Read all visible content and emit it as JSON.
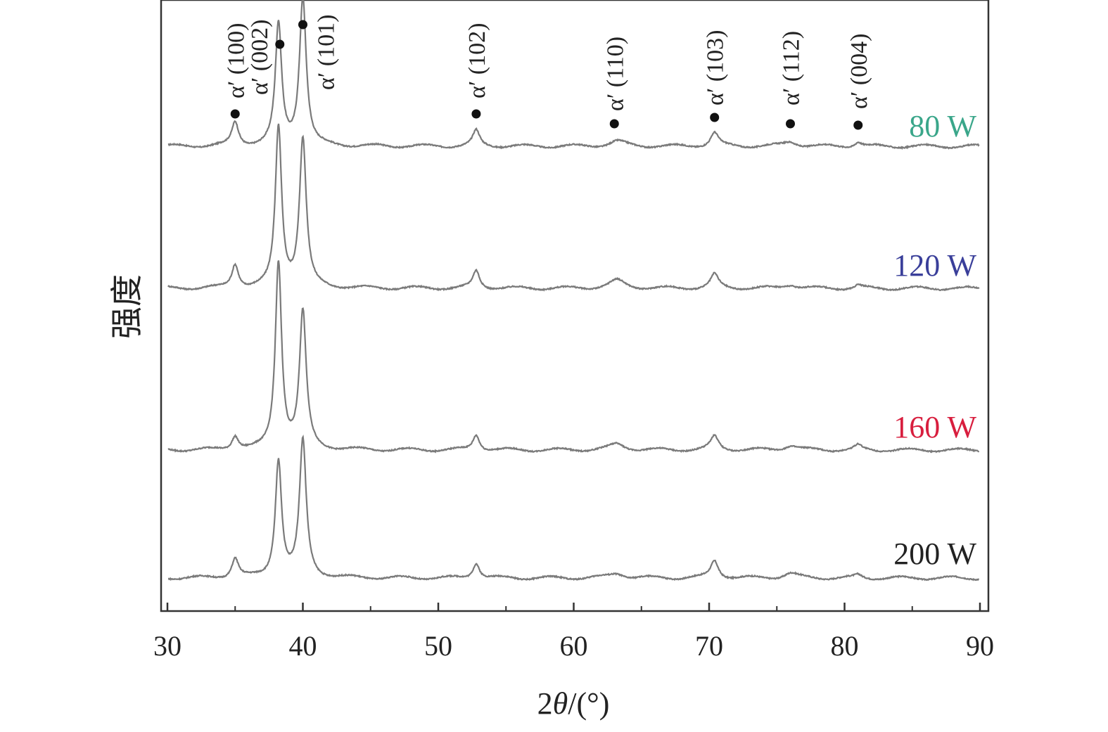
{
  "chart_data": {
    "type": "line",
    "title": "",
    "xlabel_prefix": "2",
    "xlabel_theta": "θ",
    "xlabel_suffix": "/(°)",
    "ylabel": "强度",
    "xlim": [
      30,
      90
    ],
    "xticks": [
      30,
      40,
      50,
      60,
      70,
      80,
      90
    ],
    "grid": false,
    "legend": "inline-right",
    "peak_markers": [
      {
        "x": 35.0,
        "label": "α′ (100)"
      },
      {
        "x": 38.3,
        "label": "α′ (002)"
      },
      {
        "x": 40.0,
        "label": "α′ (101)"
      },
      {
        "x": 52.8,
        "label": "α′ (102)"
      },
      {
        "x": 63.0,
        "label": "α′ (110)"
      },
      {
        "x": 70.4,
        "label": "α′ (103)"
      },
      {
        "x": 76.0,
        "label": "α′ (112)"
      },
      {
        "x": 81.0,
        "label": "α′ (004)"
      }
    ],
    "series": [
      {
        "name": "80 W",
        "label_color": "#3aa68a",
        "line_color": "#7a7a7a",
        "peaks": [
          {
            "x": 35.0,
            "h": 0.06,
            "w": 0.3
          },
          {
            "x": 38.2,
            "h": 0.31,
            "w": 0.28
          },
          {
            "x": 40.0,
            "h": 0.38,
            "w": 0.3
          },
          {
            "x": 52.8,
            "h": 0.04,
            "w": 0.3
          },
          {
            "x": 63.2,
            "h": 0.013,
            "w": 0.7
          },
          {
            "x": 70.4,
            "h": 0.035,
            "w": 0.35
          },
          {
            "x": 76.0,
            "h": 0.012,
            "w": 0.6
          },
          {
            "x": 81.0,
            "h": 0.012,
            "w": 0.3
          }
        ]
      },
      {
        "name": "120 W",
        "label_color": "#3a3f9a",
        "line_color": "#7a7a7a",
        "peaks": [
          {
            "x": 35.0,
            "h": 0.06,
            "w": 0.3
          },
          {
            "x": 38.2,
            "h": 0.41,
            "w": 0.28
          },
          {
            "x": 40.0,
            "h": 0.38,
            "w": 0.3
          },
          {
            "x": 52.8,
            "h": 0.045,
            "w": 0.3
          },
          {
            "x": 63.2,
            "h": 0.02,
            "w": 0.7
          },
          {
            "x": 70.4,
            "h": 0.035,
            "w": 0.35
          },
          {
            "x": 76.0,
            "h": 0.01,
            "w": 0.6
          },
          {
            "x": 81.0,
            "h": 0.008,
            "w": 0.3
          }
        ]
      },
      {
        "name": "160 W",
        "label_color": "#d81e3e",
        "line_color": "#7a7a7a",
        "peaks": [
          {
            "x": 35.0,
            "h": 0.035,
            "w": 0.3
          },
          {
            "x": 38.2,
            "h": 0.48,
            "w": 0.28
          },
          {
            "x": 40.0,
            "h": 0.35,
            "w": 0.3
          },
          {
            "x": 52.8,
            "h": 0.04,
            "w": 0.3
          },
          {
            "x": 63.2,
            "h": 0.015,
            "w": 0.7
          },
          {
            "x": 70.4,
            "h": 0.035,
            "w": 0.35
          },
          {
            "x": 76.0,
            "h": 0.012,
            "w": 0.6
          },
          {
            "x": 81.0,
            "h": 0.012,
            "w": 0.3
          }
        ]
      },
      {
        "name": "200 W",
        "label_color": "#222222",
        "line_color": "#7a7a7a",
        "peaks": [
          {
            "x": 35.0,
            "h": 0.05,
            "w": 0.3
          },
          {
            "x": 38.2,
            "h": 0.3,
            "w": 0.28
          },
          {
            "x": 40.0,
            "h": 0.35,
            "w": 0.3
          },
          {
            "x": 52.8,
            "h": 0.04,
            "w": 0.3
          },
          {
            "x": 63.2,
            "h": 0.012,
            "w": 0.7
          },
          {
            "x": 70.4,
            "h": 0.045,
            "w": 0.35
          },
          {
            "x": 76.0,
            "h": 0.012,
            "w": 0.6
          },
          {
            "x": 81.0,
            "h": 0.008,
            "w": 0.3
          }
        ]
      }
    ]
  }
}
